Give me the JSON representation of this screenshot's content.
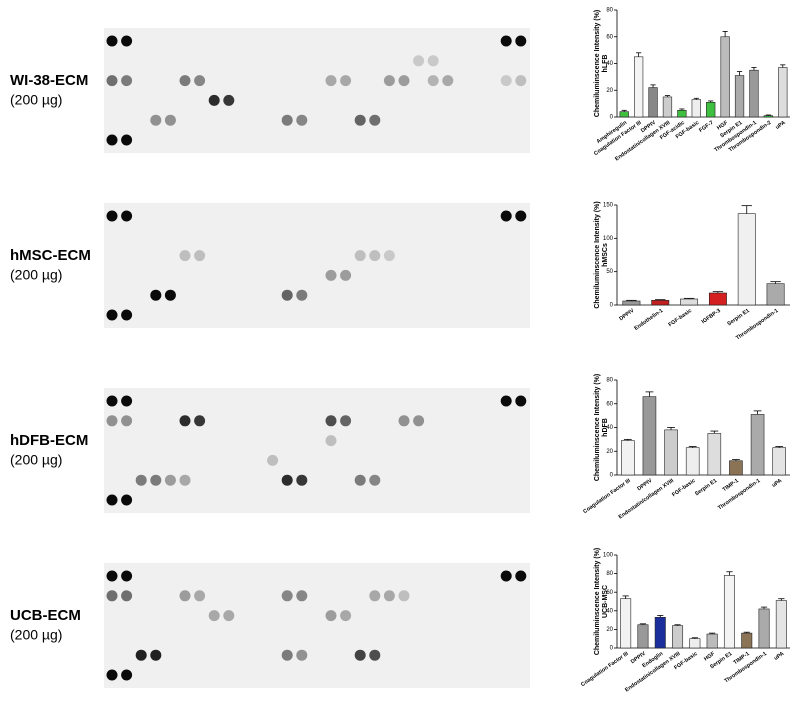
{
  "panels": [
    {
      "name": "WI-38-ECM",
      "amount": "(200 µg)"
    },
    {
      "name": "hMSC-ECM",
      "amount": "(200 µg)"
    },
    {
      "name": "hDFB-ECM",
      "amount": "(200 µg)"
    },
    {
      "name": "UCB-ECM",
      "amount": "(200 µg)"
    }
  ],
  "chart_data": [
    {
      "type": "bar",
      "ylabel": "Chemiluminscence Intensity (%)",
      "cell_label": "hLFB",
      "categories": [
        "Amphiregulin",
        "Coagulation Factor III",
        "DPPIV",
        "Endostatin/collagen XVIII",
        "FGF-acidic",
        "FGF-basic",
        "FGF-7",
        "HGF",
        "Serpin E1",
        "Thrombospondin-1",
        "Thrombospondin-2",
        "uPA"
      ],
      "values": [
        4,
        45,
        22,
        15,
        5,
        13,
        11,
        60,
        31,
        35,
        1,
        37
      ],
      "errors": [
        1,
        3,
        2,
        1,
        1,
        1,
        1,
        4,
        3,
        2,
        0.5,
        2
      ],
      "colors": [
        "#3fbf3f",
        "#f4f4f4",
        "#888888",
        "#cccccc",
        "#3fbf3f",
        "#eeeeee",
        "#3fbf3f",
        "#bbbbbb",
        "#aaaaaa",
        "#999999",
        "#3fbf3f",
        "#dddddd"
      ],
      "ylim": [
        0,
        80
      ],
      "yticks": [
        0,
        20,
        40,
        60,
        80
      ]
    },
    {
      "type": "bar",
      "ylabel": "Chemiluminscence Intensity (%)",
      "cell_label": "hMSCs",
      "categories": [
        "DPPIV",
        "Endothelin-1",
        "FGF-basic",
        "IGFBP-3",
        "Serpin E1",
        "Thrombospondin-1"
      ],
      "values": [
        6,
        7,
        9,
        18,
        137,
        32
      ],
      "errors": [
        1,
        1,
        1,
        2,
        12,
        3
      ],
      "colors": [
        "#999999",
        "#c0201f",
        "#dddddd",
        "#d42020",
        "#f0f0f0",
        "#aaaaaa"
      ],
      "ylim": [
        0,
        150
      ],
      "yticks": [
        0,
        50,
        100,
        150
      ]
    },
    {
      "type": "bar",
      "ylabel": "Chemiluminscence Intensity (%)",
      "cell_label": "hDFB",
      "categories": [
        "Coagulation Factor III",
        "DPPIV",
        "Endostatin/collagen XVIII",
        "FGF-basic",
        "Serpin E1",
        "TIMP-1",
        "Thrombospondin-1",
        "uPA"
      ],
      "values": [
        29,
        66,
        38,
        23,
        35,
        12,
        51,
        23
      ],
      "errors": [
        1,
        4,
        2,
        1,
        2,
        1,
        3,
        1
      ],
      "colors": [
        "#f2f2f2",
        "#999999",
        "#cccccc",
        "#eeeeee",
        "#dddddd",
        "#8b7355",
        "#aaaaaa",
        "#e4e4e4"
      ],
      "ylim": [
        0,
        80
      ],
      "yticks": [
        0,
        20,
        40,
        60,
        80
      ]
    },
    {
      "type": "bar",
      "ylabel": "Chemiluminscence Intensity (%)",
      "cell_label": "UCB-MSC",
      "categories": [
        "Coagulation Factor III",
        "DPPIV",
        "Endoglin",
        "Endostatin/collagen XVIII",
        "FGF-basic",
        "HGF",
        "Serpin E1",
        "TIMP-1",
        "Thrombospondin-1",
        "uPA"
      ],
      "values": [
        53,
        25,
        33,
        24,
        10,
        15,
        78,
        16,
        42,
        51
      ],
      "errors": [
        3,
        1,
        2,
        1,
        1,
        1,
        4,
        1,
        2,
        2
      ],
      "colors": [
        "#f2f2f2",
        "#999999",
        "#1a2f9c",
        "#cccccc",
        "#eeeeee",
        "#bbbbbb",
        "#f4f4f4",
        "#8b7355",
        "#aaaaaa",
        "#e4e4e4"
      ],
      "ylim": [
        0,
        100
      ],
      "yticks": [
        0,
        20,
        40,
        60,
        80,
        100
      ]
    }
  ]
}
